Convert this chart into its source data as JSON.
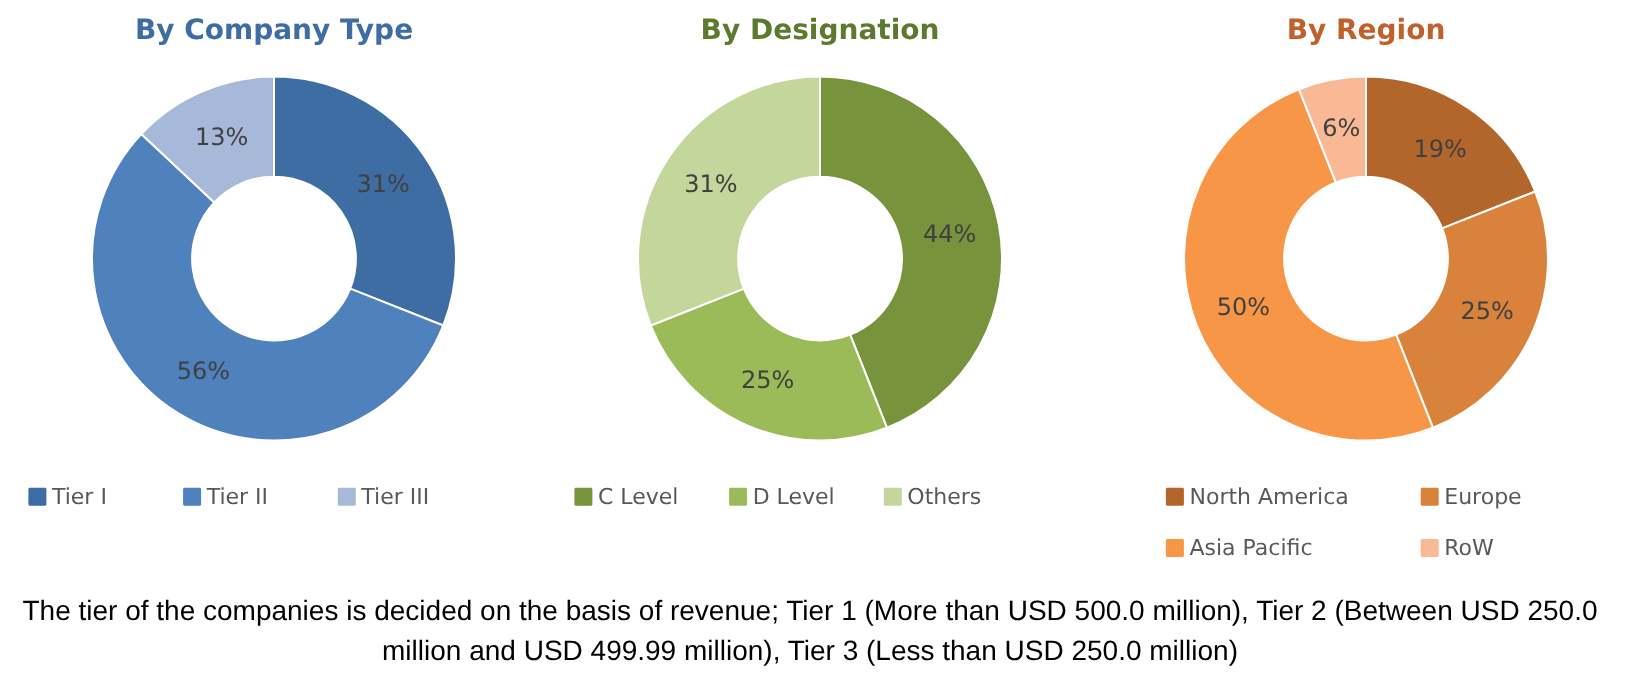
{
  "chart_data": [
    {
      "type": "donut",
      "title": "By Company Type",
      "categories": [
        "Tier I",
        "Tier II",
        "Tier III"
      ],
      "values": [
        31,
        56,
        13
      ],
      "colors": [
        "#3e6da3",
        "#4f81bd",
        "#a7b9d9"
      ],
      "value_labels": [
        "31%",
        "56%",
        "13%"
      ],
      "legend": "bottom",
      "annotations": [
        "The tier of the companies is decided on the basis of revenue; Tier 1 (More than USD 500.0 million), Tier 2 (Between USD 250.0 million and USD 499.99 million), Tier 3 (Less than USD 250.0 million)"
      ]
    },
    {
      "type": "donut",
      "title": "By Designation",
      "categories": [
        "C Level",
        "D Level",
        "Others"
      ],
      "values": [
        44,
        25,
        31
      ],
      "colors": [
        "#77933c",
        "#9bbb59",
        "#c3d69b"
      ],
      "value_labels": [
        "44%",
        "25%",
        "31%"
      ],
      "legend": "bottom"
    },
    {
      "type": "donut",
      "title": "By Region",
      "categories": [
        "North America",
        "Europe",
        "Asia Pacific",
        "RoW"
      ],
      "values": [
        19,
        25,
        50,
        6
      ],
      "colors": [
        "#b3662c",
        "#d9823b",
        "#f79646",
        "#f9b995"
      ],
      "value_labels": [
        "19%",
        "25%",
        "50%",
        "6%"
      ],
      "legend": "bottom"
    }
  ]
}
